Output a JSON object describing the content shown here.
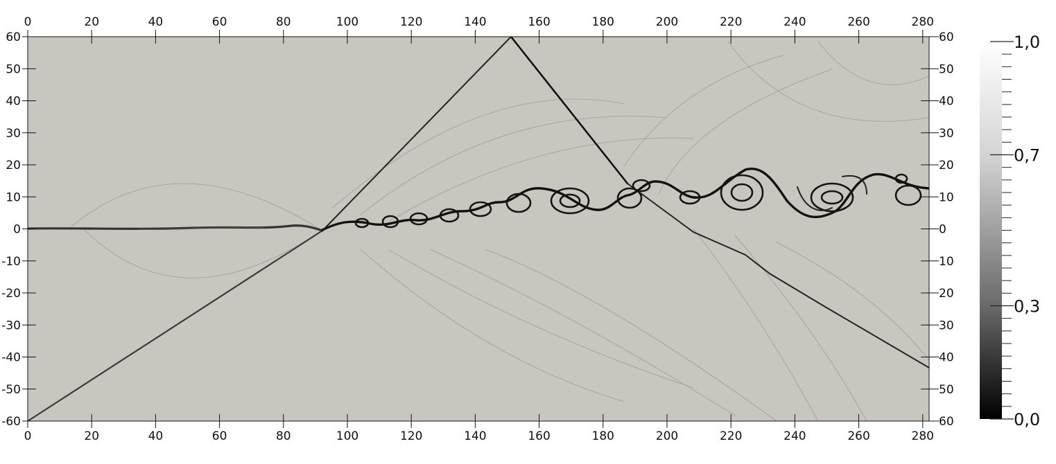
{
  "axes": {
    "x_ticks": [
      "0",
      "20",
      "40",
      "60",
      "80",
      "100",
      "120",
      "140",
      "160",
      "180",
      "200",
      "220",
      "240",
      "260",
      "280"
    ],
    "y_left_ticks": [
      "60",
      "50",
      "40",
      "30",
      "20",
      "10",
      "0",
      "-10",
      "-20",
      "-30",
      "-40",
      "-50",
      "-60"
    ],
    "y_right_ticks": [
      "60",
      "50",
      "40",
      "30",
      "20",
      "10",
      "0",
      "10",
      "20",
      "30",
      "40",
      "50",
      "60"
    ],
    "xlim": [
      0,
      282
    ],
    "ylim": [
      -60,
      60
    ]
  },
  "colorbar": {
    "labels": [
      "1,0",
      "0,7",
      "0,3",
      "0,0"
    ],
    "values": [
      1.0,
      0.7,
      0.3,
      0.0
    ],
    "minor_tick_count": 31
  },
  "colors": {
    "field_background": "#c9c6bf",
    "feature_dark": "#151515"
  }
}
